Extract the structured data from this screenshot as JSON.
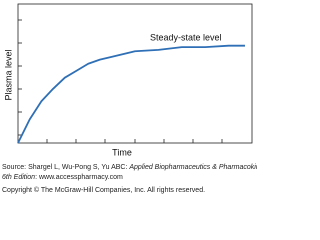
{
  "chart_data": {
    "type": "line",
    "annotation": "Steady-state level",
    "x_label": "Time",
    "y_label": "Plasma level",
    "x": [
      0,
      0.5,
      1,
      1.5,
      2,
      2.5,
      3,
      3.5,
      4,
      5,
      6,
      7,
      8,
      9,
      9.7
    ],
    "series": [
      {
        "color": "#2f6fb6",
        "values": [
          0,
          0.17,
          0.3,
          0.39,
          0.47,
          0.52,
          0.57,
          0.6,
          0.62,
          0.66,
          0.67,
          0.69,
          0.69,
          0.7,
          0.7
        ]
      }
    ],
    "xlim": [
      0,
      10
    ],
    "ylim": [
      0,
      1
    ]
  },
  "source": [
    {
      "text": "Source: Shargel L, Wu-Pong S, Yu ABC: ",
      "italic": false
    },
    {
      "text": "Applied Biopharmaceutics & Pharmacokinetics",
      "italic": true
    },
    {
      "text": ",",
      "italic": false
    }
  ],
  "source_line2": [
    {
      "text": "6th Edition",
      "italic": true
    },
    {
      "text": ": www.accesspharmacy.com",
      "italic": false
    }
  ],
  "copyright": "Copyright © The McGraw-Hill Companies, Inc. All rights reserved."
}
